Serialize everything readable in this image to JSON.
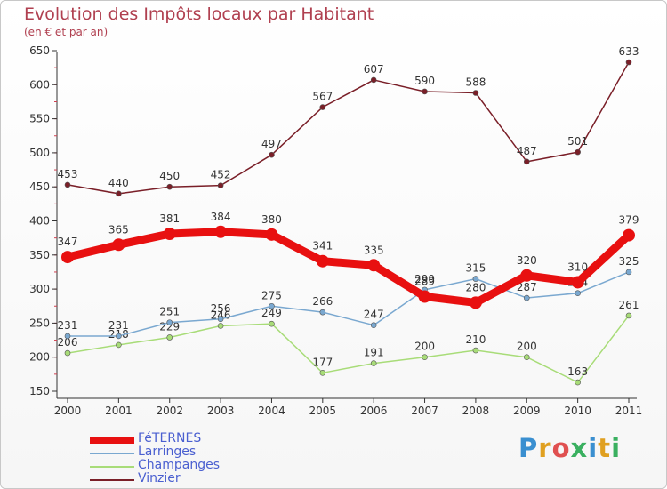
{
  "header": {
    "title": "Evolution des Impôts locaux par Habitant",
    "subtitle": "(en € et par an)"
  },
  "logo": {
    "text": "Proxiti",
    "colors": [
      "#3a8fd0",
      "#e0a020",
      "#e05050",
      "#3ab060",
      "#3a8fd0",
      "#e0a020",
      "#3ab060"
    ]
  },
  "chart_data": {
    "type": "line",
    "title": "Evolution des Impôts locaux par Habitant",
    "subtitle": "(en € et par an)",
    "xlabel": "",
    "ylabel": "",
    "x": [
      "2000",
      "2001",
      "2002",
      "2003",
      "2004",
      "2005",
      "2006",
      "2007",
      "2008",
      "2009",
      "2010",
      "2011"
    ],
    "ylim": [
      150,
      650
    ],
    "yticks": [
      150,
      200,
      250,
      300,
      350,
      400,
      450,
      500,
      550,
      600,
      650
    ],
    "grid": false,
    "legend": "bottom-left",
    "series": [
      {
        "name": "Vinzier",
        "color": "#7a1f28",
        "values": [
          453,
          440,
          450,
          452,
          497,
          567,
          607,
          590,
          588,
          487,
          501,
          633
        ]
      },
      {
        "name": "Champanges",
        "color": "#a8dc78",
        "values": [
          206,
          218,
          229,
          246,
          249,
          177,
          191,
          200,
          210,
          200,
          163,
          261
        ]
      },
      {
        "name": "Larringes",
        "color": "#7aa8d0",
        "values": [
          231,
          231,
          251,
          256,
          275,
          266,
          247,
          299,
          315,
          287,
          294,
          325
        ]
      },
      {
        "name": "FéTERNES",
        "color": "#e81010",
        "values": [
          347,
          365,
          381,
          384,
          380,
          341,
          335,
          289,
          280,
          320,
          310,
          379
        ]
      }
    ]
  }
}
